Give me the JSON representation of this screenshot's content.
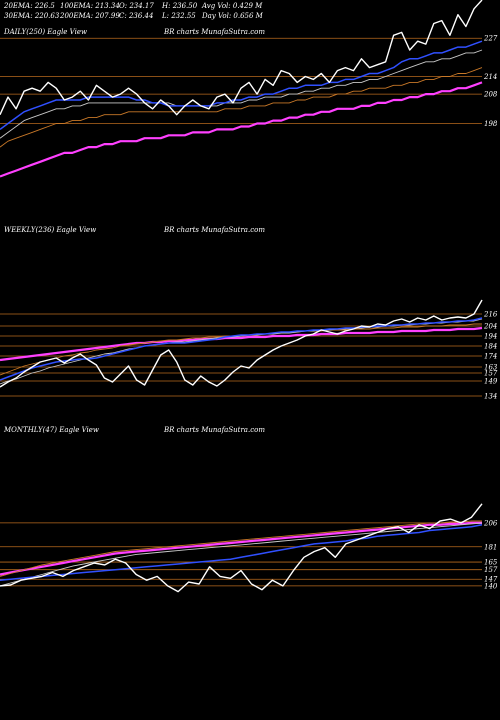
{
  "header": {
    "row1": [
      {
        "label": "20EMA: 226.5"
      },
      {
        "label": "100EMA: 213.34"
      },
      {
        "label": "O: 234.17"
      },
      {
        "label": "H: 236.50"
      },
      {
        "label": "Avg Vol: 0.429 M"
      }
    ],
    "row2": [
      {
        "label": "30EMA: 220.63"
      },
      {
        "label": "200EMA: 207.99"
      },
      {
        "label": "C: 236.44"
      },
      {
        "label": "L: 232.55"
      },
      {
        "label": "Day Vol: 0.656 M"
      }
    ]
  },
  "colors": {
    "background": "#000000",
    "price": "#ffffff",
    "ema_fast": "#3050ff",
    "ema_mid": "#c8c8c8",
    "ema_slow": "#c87828",
    "ema_long": "#ff40ff",
    "level": "#b86a1e"
  },
  "chart_data": [
    {
      "type": "line",
      "title": "DAILY(250) Eagle  View",
      "watermark": "BR charts MunafaSutra.com",
      "axis_labels": [
        "227",
        "214",
        "208",
        "198"
      ],
      "levels": [
        227,
        214,
        208,
        198
      ],
      "ylim": [
        172,
        240
      ],
      "series": [
        {
          "key": "price",
          "values": [
            201,
            207,
            203,
            209,
            210,
            209,
            212,
            210,
            206,
            207,
            209,
            206,
            211,
            209,
            207,
            208,
            210,
            208,
            205,
            203,
            206,
            204,
            201,
            204,
            206,
            204,
            203,
            207,
            208,
            205,
            210,
            212,
            208,
            213,
            211,
            216,
            215,
            212,
            214,
            213,
            215,
            212,
            216,
            217,
            216,
            220,
            217,
            218,
            219,
            228,
            229,
            223,
            226,
            225,
            232,
            233,
            228,
            235,
            231,
            237,
            240
          ]
        },
        {
          "key": "ema_fast",
          "values": [
            196,
            198,
            200,
            202,
            203,
            204,
            205,
            206,
            206,
            206,
            206,
            207,
            207,
            207,
            207,
            207,
            207,
            206,
            206,
            205,
            205,
            204,
            204,
            204,
            204,
            204,
            204,
            205,
            205,
            206,
            206,
            207,
            207,
            208,
            208,
            209,
            210,
            210,
            211,
            211,
            211,
            212,
            212,
            213,
            213,
            214,
            215,
            215,
            216,
            217,
            219,
            220,
            220,
            221,
            222,
            222,
            223,
            224,
            224,
            225,
            226
          ]
        },
        {
          "key": "ema_mid",
          "values": [
            193,
            195,
            197,
            199,
            200,
            201,
            202,
            203,
            203,
            204,
            204,
            205,
            205,
            205,
            205,
            205,
            205,
            205,
            205,
            205,
            205,
            205,
            204,
            204,
            204,
            204,
            204,
            204,
            205,
            205,
            205,
            206,
            206,
            207,
            207,
            207,
            208,
            208,
            209,
            209,
            210,
            210,
            211,
            211,
            212,
            212,
            213,
            213,
            214,
            215,
            216,
            217,
            218,
            219,
            219,
            220,
            220,
            221,
            222,
            222,
            223
          ]
        },
        {
          "key": "ema_slow",
          "values": [
            190,
            192,
            193,
            194,
            195,
            196,
            197,
            198,
            198,
            199,
            199,
            200,
            200,
            201,
            201,
            201,
            202,
            202,
            202,
            202,
            202,
            202,
            202,
            202,
            202,
            202,
            202,
            202,
            203,
            203,
            203,
            204,
            204,
            204,
            205,
            205,
            205,
            206,
            206,
            207,
            207,
            207,
            208,
            208,
            209,
            209,
            210,
            210,
            210,
            211,
            211,
            212,
            212,
            213,
            213,
            214,
            214,
            215,
            215,
            216,
            217
          ]
        },
        {
          "key": "ema_long",
          "values": [
            180,
            181,
            182,
            183,
            184,
            185,
            186,
            187,
            188,
            188,
            189,
            190,
            190,
            191,
            191,
            192,
            192,
            192,
            193,
            193,
            193,
            194,
            194,
            194,
            195,
            195,
            195,
            196,
            196,
            196,
            197,
            197,
            198,
            198,
            199,
            199,
            200,
            200,
            201,
            201,
            202,
            202,
            203,
            203,
            203,
            204,
            204,
            205,
            205,
            206,
            206,
            207,
            207,
            208,
            208,
            209,
            209,
            210,
            210,
            211,
            212
          ]
        }
      ]
    },
    {
      "type": "line",
      "title": "WEEKLY(236) Eagle  View",
      "watermark": "BR charts MunafaSutra.com",
      "axis_labels": [
        "216",
        "204",
        "194",
        "184",
        "174",
        "163",
        "157",
        "149",
        "134"
      ],
      "levels": [
        216,
        204,
        194,
        184,
        174,
        163,
        157,
        149,
        134
      ],
      "ylim": [
        120,
        240
      ],
      "series": [
        {
          "key": "price",
          "values": [
            143,
            148,
            152,
            158,
            163,
            168,
            170,
            172,
            167,
            172,
            176,
            170,
            165,
            152,
            148,
            156,
            164,
            150,
            145,
            160,
            175,
            180,
            168,
            150,
            145,
            154,
            148,
            144,
            150,
            158,
            164,
            162,
            170,
            175,
            180,
            184,
            187,
            190,
            194,
            196,
            200,
            198,
            196,
            199,
            201,
            204,
            203,
            206,
            205,
            209,
            211,
            208,
            212,
            210,
            214,
            210,
            212,
            213,
            212,
            216,
            230
          ]
        },
        {
          "key": "ema_fast",
          "values": [
            150,
            153,
            156,
            159,
            162,
            164,
            166,
            168,
            169,
            170,
            171,
            171,
            172,
            174,
            176,
            178,
            180,
            182,
            184,
            185,
            186,
            187,
            187,
            187,
            188,
            189,
            190,
            191,
            193,
            194,
            195,
            195,
            196,
            196,
            197,
            198,
            198,
            199,
            199,
            200,
            200,
            201,
            201,
            202,
            202,
            203,
            203,
            204,
            204,
            205,
            205,
            206,
            206,
            207,
            207,
            208,
            208,
            209,
            209,
            210,
            212
          ]
        },
        {
          "key": "ema_mid",
          "values": [
            146,
            149,
            151,
            154,
            157,
            159,
            162,
            164,
            166,
            168,
            170,
            172,
            174,
            176,
            177,
            179,
            181,
            182,
            184,
            185,
            186,
            187,
            188,
            188,
            189,
            190,
            191,
            192,
            193,
            193,
            194,
            195,
            195,
            196,
            196,
            197,
            197,
            198,
            199,
            199,
            200,
            200,
            201,
            201,
            202,
            202,
            203,
            203,
            204,
            204,
            205,
            205,
            206,
            206,
            207,
            207,
            208,
            208,
            209,
            209,
            211
          ]
        },
        {
          "key": "ema_slow",
          "values": [
            155,
            158,
            161,
            164,
            166,
            168,
            170,
            172,
            174,
            175,
            177,
            178,
            180,
            181,
            182,
            184,
            185,
            186,
            187,
            188,
            189,
            190,
            190,
            191,
            192,
            192,
            193,
            193,
            194,
            194,
            195,
            195,
            196,
            196,
            197,
            197,
            198,
            198,
            199,
            199,
            199,
            200,
            200,
            200,
            201,
            201,
            201,
            202,
            202,
            202,
            203,
            203,
            203,
            204,
            204,
            204,
            205,
            205,
            205,
            206,
            206
          ]
        },
        {
          "key": "ema_long",
          "values": [
            170,
            171,
            172,
            173,
            174,
            175,
            176,
            177,
            178,
            179,
            180,
            181,
            182,
            183,
            184,
            185,
            186,
            187,
            187,
            188,
            188,
            189,
            189,
            190,
            190,
            191,
            191,
            191,
            192,
            192,
            192,
            193,
            193,
            193,
            194,
            194,
            194,
            195,
            195,
            195,
            196,
            196,
            196,
            197,
            197,
            197,
            197,
            198,
            198,
            198,
            199,
            199,
            199,
            199,
            200,
            200,
            200,
            201,
            201,
            201,
            202
          ]
        }
      ]
    },
    {
      "type": "line",
      "title": "MONTHLY(47) Eagle  View",
      "watermark": "BR charts MunafaSutra.com",
      "axis_labels": [
        "206",
        "181",
        "165",
        "157",
        "147",
        "140"
      ],
      "levels": [
        206,
        181,
        165,
        157,
        147,
        140
      ],
      "ylim": [
        120,
        230
      ],
      "series": [
        {
          "key": "price",
          "values": [
            140,
            141,
            146,
            148,
            150,
            154,
            150,
            156,
            160,
            164,
            162,
            168,
            164,
            152,
            146,
            150,
            140,
            134,
            144,
            142,
            160,
            150,
            148,
            156,
            142,
            136,
            146,
            140,
            156,
            170,
            176,
            180,
            170,
            184,
            188,
            192,
            196,
            200,
            202,
            196,
            204,
            200,
            208,
            210,
            206,
            212,
            226
          ]
        },
        {
          "key": "ema_fast",
          "values": [
            146,
            147,
            148,
            149,
            150,
            151,
            152,
            153,
            154,
            155,
            156,
            157,
            158,
            159,
            160,
            161,
            162,
            163,
            164,
            165,
            166,
            167,
            168,
            170,
            172,
            174,
            176,
            178,
            180,
            182,
            184,
            185,
            186,
            187,
            189,
            190,
            192,
            193,
            194,
            195,
            196,
            198,
            199,
            200,
            201,
            202,
            204
          ]
        },
        {
          "key": "ema_mid",
          "values": [
            140,
            143,
            146,
            149,
            152,
            155,
            158,
            161,
            163,
            165,
            167,
            169,
            171,
            173,
            174,
            175,
            176,
            177,
            178,
            179,
            180,
            181,
            182,
            183,
            184,
            185,
            186,
            187,
            188,
            189,
            190,
            191,
            192,
            193,
            194,
            195,
            196,
            197,
            198,
            199,
            200,
            201,
            202,
            203,
            204,
            205,
            206
          ]
        },
        {
          "key": "ema_slow",
          "values": [
            150,
            153,
            156,
            159,
            162,
            164,
            166,
            168,
            170,
            172,
            174,
            176,
            177,
            178,
            179,
            180,
            181,
            182,
            183,
            184,
            185,
            186,
            187,
            188,
            189,
            190,
            191,
            192,
            193,
            194,
            195,
            196,
            197,
            198,
            199,
            200,
            201,
            202,
            203,
            204,
            205,
            206,
            206,
            207,
            207,
            208,
            208
          ]
        },
        {
          "key": "ema_long",
          "values": [
            152,
            154,
            156,
            158,
            160,
            162,
            164,
            166,
            168,
            170,
            172,
            174,
            175,
            176,
            177,
            178,
            179,
            180,
            181,
            182,
            183,
            184,
            185,
            186,
            187,
            188,
            189,
            190,
            191,
            192,
            193,
            194,
            195,
            196,
            197,
            198,
            199,
            200,
            201,
            202,
            203,
            204,
            204,
            205,
            205,
            206,
            206
          ]
        }
      ]
    }
  ]
}
